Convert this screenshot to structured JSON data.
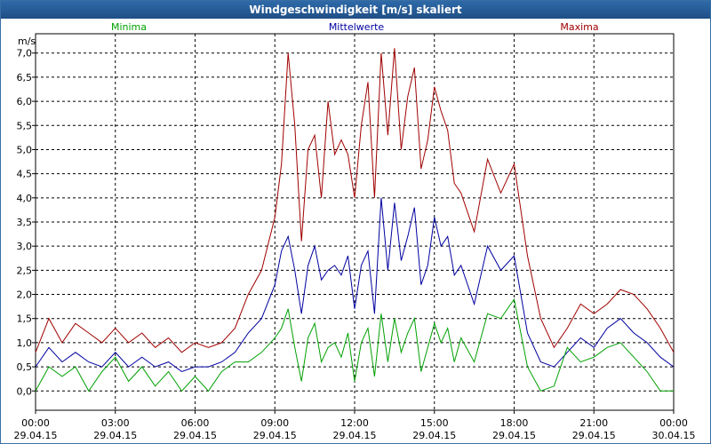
{
  "window": {
    "title": "Windgeschwindigkeit [m/s] skaliert"
  },
  "chart_data": {
    "type": "line",
    "title": "Windgeschwindigkeit [m/s] skaliert",
    "ylabel": "m/s",
    "ylim": [
      -0.4,
      7.4
    ],
    "yticks": [
      "0,0",
      "0,5",
      "1,0",
      "1,5",
      "2,0",
      "2,5",
      "3,0",
      "3,5",
      "4,0",
      "4,5",
      "5,0",
      "5,5",
      "6,0",
      "6,5",
      "7,0"
    ],
    "xticks": [
      {
        "time": "00:00",
        "date": "29.04.15"
      },
      {
        "time": "03:00",
        "date": "29.04.15"
      },
      {
        "time": "06:00",
        "date": "29.04.15"
      },
      {
        "time": "09:00",
        "date": "29.04.15"
      },
      {
        "time": "12:00",
        "date": "29.04.15"
      },
      {
        "time": "15:00",
        "date": "29.04.15"
      },
      {
        "time": "18:00",
        "date": "29.04.15"
      },
      {
        "time": "21:00",
        "date": "29.04.15"
      },
      {
        "time": "00:00",
        "date": "30.04.15"
      }
    ],
    "xlim": [
      0,
      24
    ],
    "grid": true,
    "legend_position": "top",
    "series": [
      {
        "name": "Maxima",
        "color": "#a00000",
        "x": [
          0,
          0.5,
          1,
          1.5,
          2,
          2.5,
          3,
          3.5,
          4,
          4.5,
          5,
          5.5,
          6,
          6.5,
          7,
          7.5,
          8,
          8.5,
          9,
          9.25,
          9.5,
          9.75,
          10,
          10.25,
          10.5,
          10.75,
          11,
          11.25,
          11.5,
          11.75,
          12,
          12.25,
          12.5,
          12.75,
          13,
          13.25,
          13.5,
          13.75,
          14,
          14.25,
          14.5,
          14.75,
          15,
          15.25,
          15.5,
          15.75,
          16,
          16.5,
          17,
          17.5,
          18,
          18.5,
          19,
          19.5,
          20,
          20.5,
          21,
          21.5,
          22,
          22.5,
          23,
          23.5,
          24
        ],
        "y": [
          0.8,
          1.5,
          1.0,
          1.4,
          1.2,
          1.0,
          1.3,
          1.0,
          1.2,
          0.9,
          1.1,
          0.8,
          1.0,
          0.9,
          1.0,
          1.3,
          2.0,
          2.5,
          3.6,
          4.7,
          7.0,
          5.5,
          3.1,
          5.0,
          5.3,
          4.0,
          6.0,
          4.9,
          5.2,
          4.9,
          4.0,
          5.5,
          6.4,
          4.0,
          7.0,
          5.3,
          7.1,
          5.0,
          6.1,
          6.7,
          4.6,
          5.2,
          6.3,
          5.8,
          5.4,
          4.3,
          4.1,
          3.3,
          4.8,
          4.1,
          4.7,
          2.8,
          1.5,
          0.9,
          1.3,
          1.8,
          1.6,
          1.8,
          2.1,
          2.0,
          1.7,
          1.3,
          0.8
        ]
      },
      {
        "name": "Mittelwerte",
        "color": "#0000a0",
        "x": [
          0,
          0.5,
          1,
          1.5,
          2,
          2.5,
          3,
          3.5,
          4,
          4.5,
          5,
          5.5,
          6,
          6.5,
          7,
          7.5,
          8,
          8.5,
          9,
          9.25,
          9.5,
          9.75,
          10,
          10.25,
          10.5,
          10.75,
          11,
          11.25,
          11.5,
          11.75,
          12,
          12.25,
          12.5,
          12.75,
          13,
          13.25,
          13.5,
          13.75,
          14,
          14.25,
          14.5,
          14.75,
          15,
          15.25,
          15.5,
          15.75,
          16,
          16.5,
          17,
          17.5,
          18,
          18.5,
          19,
          19.5,
          20,
          20.5,
          21,
          21.5,
          22,
          22.5,
          23,
          23.5,
          24
        ],
        "y": [
          0.5,
          0.9,
          0.6,
          0.8,
          0.6,
          0.5,
          0.8,
          0.5,
          0.7,
          0.5,
          0.6,
          0.4,
          0.5,
          0.5,
          0.6,
          0.8,
          1.2,
          1.5,
          2.2,
          2.9,
          3.2,
          2.5,
          1.6,
          2.6,
          3.0,
          2.3,
          2.5,
          2.6,
          2.4,
          2.8,
          1.7,
          2.6,
          2.9,
          1.6,
          4.0,
          2.5,
          3.9,
          2.7,
          3.2,
          3.8,
          2.2,
          2.6,
          3.6,
          3.0,
          3.2,
          2.4,
          2.6,
          1.8,
          3.0,
          2.5,
          2.8,
          1.2,
          0.6,
          0.5,
          0.8,
          1.1,
          0.9,
          1.3,
          1.5,
          1.2,
          1.0,
          0.7,
          0.5
        ]
      },
      {
        "name": "Minima",
        "color": "#00a000",
        "x": [
          0,
          0.5,
          1,
          1.5,
          2,
          2.5,
          3,
          3.5,
          4,
          4.5,
          5,
          5.5,
          6,
          6.5,
          7,
          7.5,
          8,
          8.5,
          9,
          9.25,
          9.5,
          9.75,
          10,
          10.25,
          10.5,
          10.75,
          11,
          11.25,
          11.5,
          11.75,
          12,
          12.25,
          12.5,
          12.75,
          13,
          13.25,
          13.5,
          13.75,
          14,
          14.25,
          14.5,
          14.75,
          15,
          15.25,
          15.5,
          15.75,
          16,
          16.5,
          17,
          17.5,
          18,
          18.5,
          19,
          19.5,
          20,
          20.5,
          21,
          21.5,
          22,
          22.5,
          23,
          23.5,
          24
        ],
        "y": [
          0.0,
          0.5,
          0.3,
          0.5,
          0.0,
          0.4,
          0.7,
          0.2,
          0.5,
          0.1,
          0.4,
          0.0,
          0.3,
          0.0,
          0.4,
          0.6,
          0.6,
          0.8,
          1.1,
          1.3,
          1.7,
          0.9,
          0.2,
          1.1,
          1.4,
          0.6,
          0.9,
          1.0,
          0.7,
          1.2,
          0.2,
          1.0,
          1.3,
          0.3,
          1.6,
          0.6,
          1.5,
          0.8,
          1.2,
          1.5,
          0.4,
          0.9,
          1.4,
          1.0,
          1.3,
          0.6,
          1.1,
          0.6,
          1.6,
          1.5,
          1.9,
          0.5,
          0.0,
          0.1,
          0.9,
          0.6,
          0.7,
          0.9,
          1.0,
          0.7,
          0.4,
          0.0,
          0.0
        ]
      }
    ]
  }
}
